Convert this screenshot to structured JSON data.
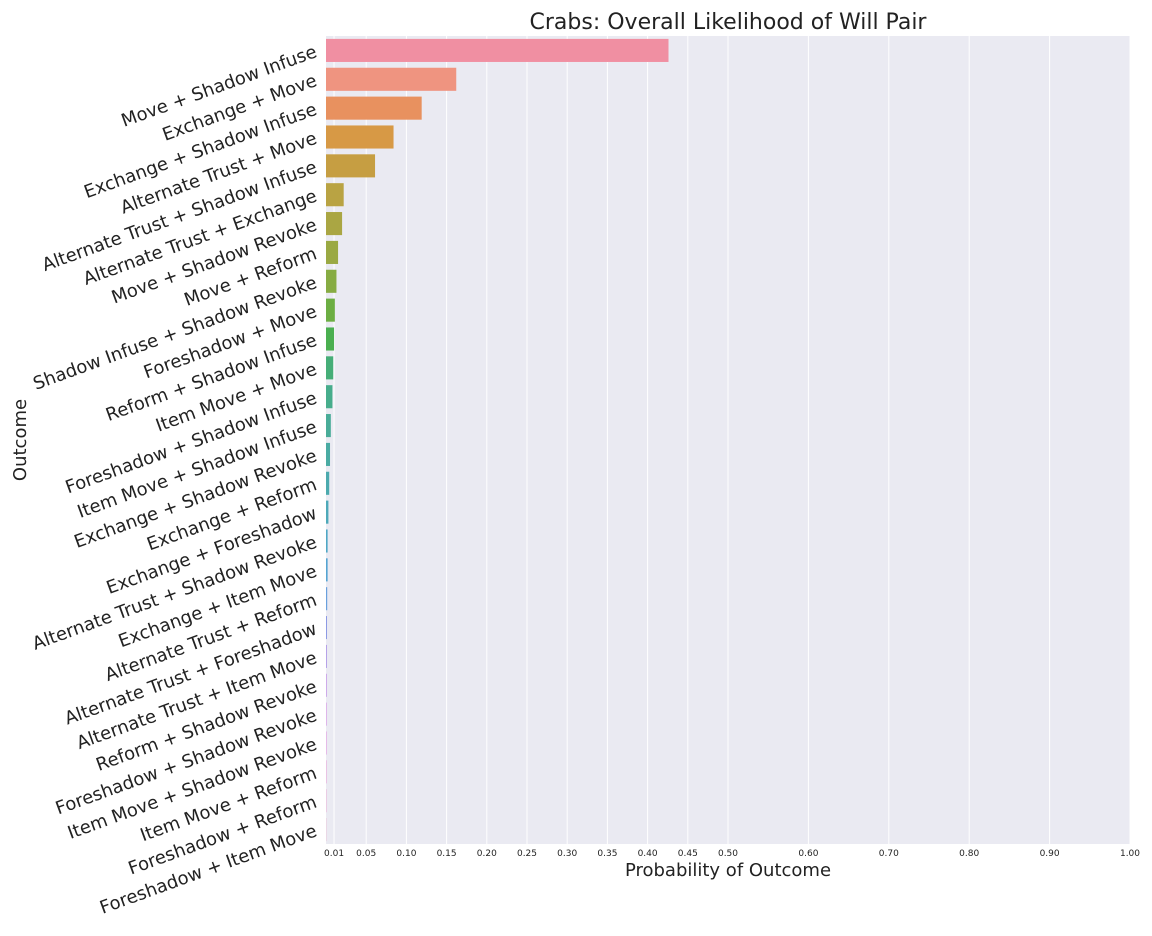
{
  "chart_data": {
    "type": "bar",
    "orientation": "horizontal",
    "title": "Crabs: Overall Likelihood of Will Pair",
    "xlabel": "Probability of Outcome",
    "ylabel": "Outcome",
    "xlim": [
      0.0,
      1.0
    ],
    "xticks": [
      0.01,
      0.05,
      0.1,
      0.15,
      0.2,
      0.25,
      0.3,
      0.35,
      0.4,
      0.45,
      0.5,
      0.6,
      0.7,
      0.8,
      0.9,
      1.0
    ],
    "xtick_labels": [
      "0.01",
      "0.05",
      "0.10",
      "0.15",
      "0.20",
      "0.25",
      "0.30",
      "0.35",
      "0.40",
      "0.45",
      "0.50",
      "0.60",
      "0.70",
      "0.80",
      "0.90",
      "1.00"
    ],
    "grid": true,
    "categories": [
      "Move + Shadow Infuse",
      "Exchange + Move",
      "Exchange + Shadow Infuse",
      "Alternate Trust + Move",
      "Alternate Trust + Shadow Infuse",
      "Alternate Trust + Exchange",
      "Move + Shadow Revoke",
      "Move + Reform",
      "Shadow Infuse + Shadow Revoke",
      "Foreshadow + Move",
      "Reform + Shadow Infuse",
      "Item Move + Move",
      "Foreshadow + Shadow Infuse",
      "Item Move + Shadow Infuse",
      "Exchange + Shadow Revoke",
      "Exchange + Reform",
      "Exchange + Foreshadow",
      "Alternate Trust + Shadow Revoke",
      "Exchange + Item Move",
      "Alternate Trust + Reform",
      "Alternate Trust + Foreshadow",
      "Alternate Trust + Item Move",
      "Reform + Shadow Revoke",
      "Foreshadow + Shadow Revoke",
      "Item Move + Shadow Revoke",
      "Item Move + Reform",
      "Foreshadow + Reform",
      "Foreshadow + Item Move"
    ],
    "values": [
      0.426,
      0.162,
      0.119,
      0.084,
      0.061,
      0.022,
      0.02,
      0.015,
      0.013,
      0.011,
      0.01,
      0.009,
      0.008,
      0.006,
      0.005,
      0.004,
      0.003,
      0.002,
      0.002,
      0.0015,
      0.0012,
      0.001,
      0.0008,
      0.0006,
      0.0005,
      0.0004,
      0.0003,
      0.0002
    ],
    "colors": [
      "#f08fa2",
      "#ef9480",
      "#e8915f",
      "#d79945",
      "#c69e42",
      "#b9a343",
      "#aaa643",
      "#9aa943",
      "#87ac43",
      "#6cae43",
      "#4aaf50",
      "#46ae78",
      "#47ad8c",
      "#49ac98",
      "#4aaba3",
      "#4caaae",
      "#4ea9b9",
      "#50a7c5",
      "#55a4d2",
      "#6aa0dd",
      "#8a98e4",
      "#a990e6",
      "#bf88e5",
      "#d07ee2",
      "#de76d7",
      "#e670c7",
      "#eb70b7",
      "#ee78a8"
    ]
  }
}
